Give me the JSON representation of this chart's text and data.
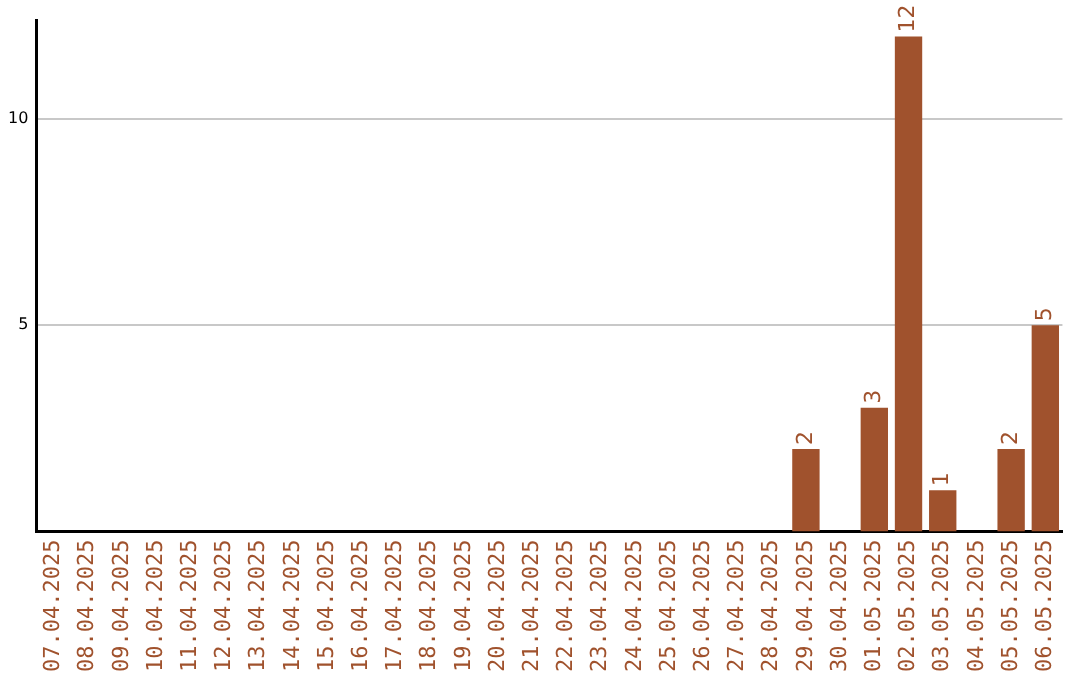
{
  "chart_data": {
    "type": "bar",
    "categories": [
      "07.04.2025",
      "08.04.2025",
      "09.04.2025",
      "10.04.2025",
      "11.04.2025",
      "12.04.2025",
      "13.04.2025",
      "14.04.2025",
      "15.04.2025",
      "16.04.2025",
      "17.04.2025",
      "18.04.2025",
      "19.04.2025",
      "20.04.2025",
      "21.04.2025",
      "22.04.2025",
      "23.04.2025",
      "24.04.2025",
      "25.04.2025",
      "26.04.2025",
      "27.04.2025",
      "28.04.2025",
      "29.04.2025",
      "30.04.2025",
      "01.05.2025",
      "02.05.2025",
      "03.05.2025",
      "04.05.2025",
      "05.05.2025",
      "06.05.2025"
    ],
    "values": [
      0,
      0,
      0,
      0,
      0,
      0,
      0,
      0,
      0,
      0,
      0,
      0,
      0,
      0,
      0,
      0,
      0,
      0,
      0,
      0,
      0,
      0,
      2,
      0,
      3,
      12,
      1,
      0,
      2,
      5
    ],
    "value_labels": [
      null,
      null,
      null,
      null,
      null,
      null,
      null,
      null,
      null,
      null,
      null,
      null,
      null,
      null,
      null,
      null,
      null,
      null,
      null,
      null,
      null,
      null,
      "2",
      null,
      "3",
      "12",
      "1",
      null,
      "2",
      "5"
    ],
    "color": "#a0522d",
    "ylim": [
      0,
      12.4
    ],
    "yticks": [
      5,
      10
    ],
    "grid": "y",
    "legend": false
  }
}
